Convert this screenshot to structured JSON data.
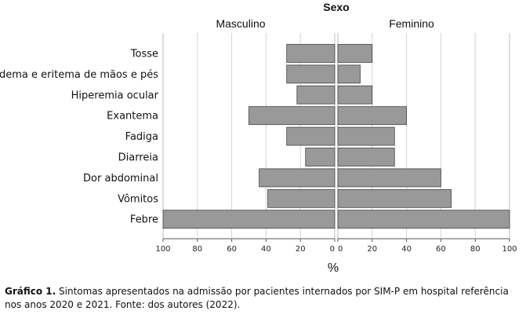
{
  "chart_data": {
    "type": "bar",
    "orientation": "horizontal",
    "layout": "butterfly",
    "title": "Sexo",
    "unit_label": "%",
    "categories": [
      "Tosse",
      "Edema e eritema de mãos e pés",
      "Hiperemia ocular",
      "Exantema",
      "Fadiga",
      "Diarreia",
      "Dor abdominal",
      "Vômitos",
      "Febre"
    ],
    "series": [
      {
        "name": "Masculino",
        "values": [
          28,
          28,
          22,
          50,
          28,
          17,
          44,
          39,
          100
        ]
      },
      {
        "name": "Feminino",
        "values": [
          20,
          13,
          20,
          40,
          33,
          33,
          60,
          66,
          100
        ]
      }
    ],
    "xlim": [
      0,
      100
    ],
    "x_ticks_left": [
      "100",
      "80",
      "60",
      "40",
      "20",
      "0"
    ],
    "x_ticks_right": [
      "0",
      "20",
      "40",
      "60",
      "80",
      "100"
    ],
    "bar_color": "#999999",
    "grid": true,
    "grid_axis": "x"
  },
  "caption": {
    "label": "Gráfico 1.",
    "text": " Sintomas apresentados na admissão por pacientes internados por SIM-P em hospital referência nos anos 2020 e 2021. Fonte: dos autores (2022)."
  }
}
